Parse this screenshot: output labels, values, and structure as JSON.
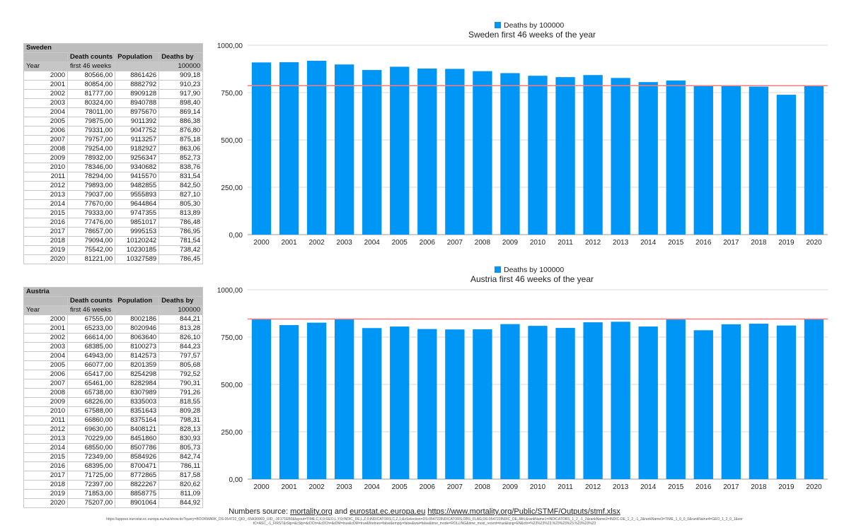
{
  "chart_data": [
    {
      "type": "bar",
      "title": "Sweden first 46 weeks of the year",
      "legend": "Deaths by 100000",
      "legend_position": "top",
      "ylim": [
        0,
        1000
      ],
      "yticks": [
        "0,00",
        "250,00",
        "500,00",
        "750,00",
        "1000,00"
      ],
      "reference_line": 786.45,
      "categories": [
        "2000",
        "2001",
        "2002",
        "2003",
        "2004",
        "2005",
        "2006",
        "2007",
        "2008",
        "2009",
        "2010",
        "2011",
        "2012",
        "2013",
        "2014",
        "2015",
        "2016",
        "2017",
        "2018",
        "2019",
        "2020"
      ],
      "values": [
        909.18,
        910.23,
        917.9,
        898.4,
        869.14,
        886.38,
        876.8,
        875.18,
        863.06,
        852.73,
        838.76,
        831.54,
        842.5,
        827.1,
        805.3,
        813.89,
        786.48,
        786.95,
        781.54,
        738.42,
        786.45
      ]
    },
    {
      "type": "bar",
      "title": "Austria first 46 weeks of the year",
      "legend": "Deaths by 100000",
      "legend_position": "top",
      "ylim": [
        0,
        1000
      ],
      "yticks": [
        "0,00",
        "250,00",
        "500,00",
        "750,00",
        "1000,00"
      ],
      "reference_line": 844.92,
      "categories": [
        "2000",
        "2001",
        "2002",
        "2003",
        "2004",
        "2005",
        "2006",
        "2007",
        "2008",
        "2009",
        "2010",
        "2011",
        "2012",
        "2013",
        "2014",
        "2015",
        "2016",
        "2017",
        "2018",
        "2019",
        "2020"
      ],
      "values": [
        844.21,
        813.28,
        826.1,
        844.23,
        797.57,
        805.68,
        792.52,
        790.31,
        791.26,
        818.55,
        809.28,
        798.31,
        828.13,
        830.93,
        805.73,
        842.74,
        786.11,
        817.58,
        820.62,
        811.09,
        844.92
      ]
    }
  ],
  "tables": [
    {
      "country": "Sweden",
      "headers": [
        "",
        "Death counts",
        "Population",
        "Deaths by"
      ],
      "subheaders": [
        "Year",
        "first 46 weeks",
        "",
        "100000"
      ],
      "rows": [
        [
          "2000",
          "80566,00",
          "8861426",
          "909,18"
        ],
        [
          "2001",
          "80854,00",
          "8882792",
          "910,23"
        ],
        [
          "2002",
          "81777,00",
          "8909128",
          "917,90"
        ],
        [
          "2003",
          "80324,00",
          "8940788",
          "898,40"
        ],
        [
          "2004",
          "78011,00",
          "8975670",
          "869,14"
        ],
        [
          "2005",
          "79875,00",
          "9011392",
          "886,38"
        ],
        [
          "2006",
          "79331,00",
          "9047752",
          "876,80"
        ],
        [
          "2007",
          "79757,00",
          "9113257",
          "875,18"
        ],
        [
          "2008",
          "79254,00",
          "9182927",
          "863,06"
        ],
        [
          "2009",
          "78932,00",
          "9256347",
          "852,73"
        ],
        [
          "2010",
          "78346,00",
          "9340682",
          "838,76"
        ],
        [
          "2011",
          "78294,00",
          "9415570",
          "831,54"
        ],
        [
          "2012",
          "79893,00",
          "9482855",
          "842,50"
        ],
        [
          "2013",
          "79037,00",
          "9555893",
          "827,10"
        ],
        [
          "2014",
          "77670,00",
          "9644864",
          "805,30"
        ],
        [
          "2015",
          "79333,00",
          "9747355",
          "813,89"
        ],
        [
          "2016",
          "77476,00",
          "9851017",
          "786,48"
        ],
        [
          "2017",
          "78657,00",
          "9995153",
          "786,95"
        ],
        [
          "2018",
          "79094,00",
          "10120242",
          "781,54"
        ],
        [
          "2019",
          "75542,00",
          "10230185",
          "738,42"
        ],
        [
          "2020",
          "81221,00",
          "10327589",
          "786,45"
        ]
      ]
    },
    {
      "country": "Austria",
      "headers": [
        "",
        "Death counts",
        "Population",
        "Deaths by"
      ],
      "subheaders": [
        "Year",
        "first 46 weeks",
        "",
        "100000"
      ],
      "rows": [
        [
          "2000",
          "67555,00",
          "8002186",
          "844,21"
        ],
        [
          "2001",
          "65233,00",
          "8020946",
          "813,28"
        ],
        [
          "2002",
          "66614,00",
          "8063640",
          "826,10"
        ],
        [
          "2003",
          "68385,00",
          "8100273",
          "844,23"
        ],
        [
          "2004",
          "64943,00",
          "8142573",
          "797,57"
        ],
        [
          "2005",
          "66077,00",
          "8201359",
          "805,68"
        ],
        [
          "2006",
          "65417,00",
          "8254298",
          "792,52"
        ],
        [
          "2007",
          "65461,00",
          "8282984",
          "790,31"
        ],
        [
          "2008",
          "65738,00",
          "8307989",
          "791,26"
        ],
        [
          "2009",
          "68226,00",
          "8335003",
          "818,55"
        ],
        [
          "2010",
          "67588,00",
          "8351643",
          "809,28"
        ],
        [
          "2011",
          "66860,00",
          "8375164",
          "798,31"
        ],
        [
          "2012",
          "69630,00",
          "8408121",
          "828,13"
        ],
        [
          "2013",
          "70229,00",
          "8451860",
          "830,93"
        ],
        [
          "2014",
          "68550,00",
          "8507786",
          "805,73"
        ],
        [
          "2015",
          "72349,00",
          "8584926",
          "842,74"
        ],
        [
          "2016",
          "68395,00",
          "8700471",
          "786,11"
        ],
        [
          "2017",
          "71725,00",
          "8772865",
          "817,58"
        ],
        [
          "2018",
          "72397,00",
          "8822267",
          "820,62"
        ],
        [
          "2019",
          "71853,00",
          "8858775",
          "811,09"
        ],
        [
          "2020",
          "75207,00",
          "8901064",
          "844,92"
        ]
      ]
    }
  ],
  "footer": {
    "prefix": "Numbers source: ",
    "link1": "mortality.org",
    "and": " and ",
    "link2": "eurostat.ec.europa.eu",
    "space": " ",
    "link3": "https://www.mortality.org/Public/STMF/Outputs/stmf.xlsx",
    "small_url": "https://appsso.eurostat.ec.europa.eu/nui/show.do?query=BOOKMARK_DS-054722_QID_-55A3096D_UID_-3F171EB0&layout=TIME,C,X,0;GEO,L,Y,0;INDIC_DE,L,Z,0;INDICATORS,C,Z,1;&zSelection=DS-054722INDICATORS,OBS_FLAG;DS-054722INDIC_DE,JAN;&rankName1=INDICATORS_1_2_-1_2&rankName2=INDIC-DE_1_2_-1_2&rankName3=TIME_1_0_0_0&rankName4=GEO_1_2_0_1&sortC=ASC_-1_FIRST&rStp=&cStp=&rDCh=&cDCh=&rDM=true&cDM=true&footnes=false&empty=false&wai=false&time_mode=ROLLING&time_most_recent=true&lang=EN&cfo=%23%23%23,%23%23%23.%23%23%23"
  },
  "colors": {
    "bar": "#0096f5",
    "reference_line": "#ff7b7b",
    "grid": "#d9d9d9",
    "header_bg": "#bdbdbd"
  }
}
